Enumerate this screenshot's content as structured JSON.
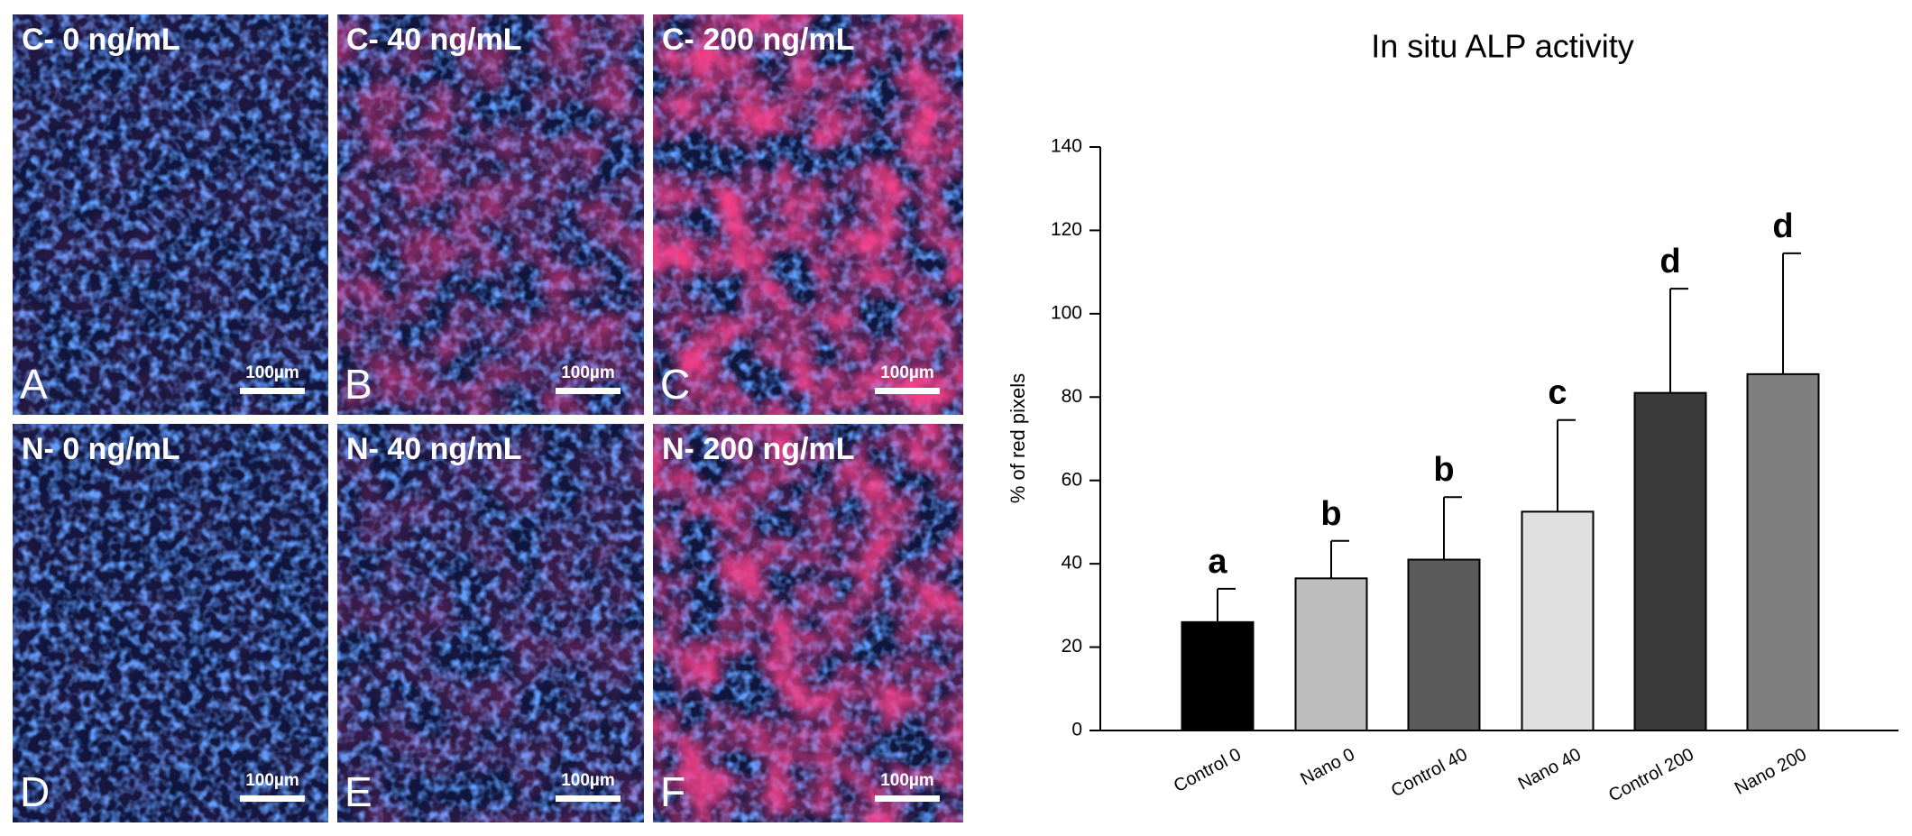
{
  "panels": [
    {
      "title": "C- 0 ng/mL",
      "letter": "A",
      "scale": "100µm"
    },
    {
      "title": "C- 40 ng/mL",
      "letter": "B",
      "scale": "100µm"
    },
    {
      "title": "C- 200 ng/mL",
      "letter": "C",
      "scale": "100µm"
    },
    {
      "title": "N- 0 ng/mL",
      "letter": "D",
      "scale": "100µm"
    },
    {
      "title": "N- 40 ng/mL",
      "letter": "E",
      "scale": "100µm"
    },
    {
      "title": "N- 200 ng/mL",
      "letter": "F",
      "scale": "100µm"
    }
  ],
  "chart_data": {
    "type": "bar",
    "title": "In situ ALP activity",
    "y_label": "% of red pixels",
    "categories": [
      "Control 0",
      "Nano 0",
      "Control 40",
      "Nano 40",
      "Control 200",
      "Nano 200"
    ],
    "values": [
      26,
      36.5,
      41,
      52.5,
      81,
      85.5
    ],
    "errors": [
      8,
      9,
      15,
      22,
      25,
      29
    ],
    "annotations": [
      "a",
      "b",
      "b",
      "c",
      "d",
      "d"
    ],
    "colors": [
      "#000000",
      "#bdbdbd",
      "#5a5a5a",
      "#e0e0e0",
      "#3a3a3a",
      "#7f7f7f"
    ],
    "ylim": [
      0,
      140
    ],
    "yticks": [
      0,
      20,
      40,
      60,
      80,
      100,
      120,
      140
    ]
  }
}
